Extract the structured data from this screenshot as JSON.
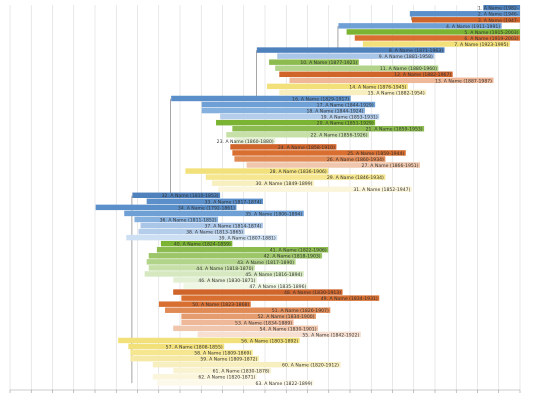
{
  "chart_data": {
    "type": "bar",
    "orientation": "horizontal-range",
    "title": "",
    "xlabel": "",
    "ylabel": "",
    "xlim": [
      1750,
      2000
    ],
    "grid": true,
    "x_ticks": [
      "",
      "",
      "",
      "",
      "",
      "",
      "",
      "",
      "",
      "",
      "",
      "",
      "",
      "",
      "",
      "",
      "",
      "",
      "",
      "",
      "",
      "",
      "",
      "",
      ""
    ],
    "bars": [
      {
        "label": "1. A Name (1982-",
        "start": 1982,
        "end": 2000,
        "color": "#4f81bd"
      },
      {
        "label": "2. A Name (1946-",
        "start": 1946,
        "end": 2000,
        "color": "#5b8fc9"
      },
      {
        "label": "3. A Name (1947-",
        "start": 1947,
        "end": 2000,
        "color": "#d0652b"
      },
      {
        "label": "4. A Name (1911-1991)",
        "start": 1911,
        "end": 1991,
        "color": "#6e9fd5"
      },
      {
        "label": "5. A Name (1915-2003)",
        "start": 1915,
        "end": 2003,
        "color": "#7bb333"
      },
      {
        "label": "6. A Name (1919-2003)",
        "start": 1919,
        "end": 2003,
        "color": "#d86f30"
      },
      {
        "label": "7. A Name (1923-1995)",
        "start": 1923,
        "end": 1995,
        "color": "#f2e07a"
      },
      {
        "label": "8. A Name (1871-1963)",
        "start": 1871,
        "end": 1963,
        "color": "#4f81bd"
      },
      {
        "label": "9. A Name (1881-1958)",
        "start": 1881,
        "end": 1958,
        "color": "#a9c5e8"
      },
      {
        "label": "10. A Name (1877-1921)",
        "start": 1877,
        "end": 1921,
        "color": "#8cbb50"
      },
      {
        "label": "11. A Name (1880-1960)",
        "start": 1880,
        "end": 1960,
        "color": "#b2d48a"
      },
      {
        "label": "12. A Name (1882-1967)",
        "start": 1882,
        "end": 1967,
        "color": "#d0652b"
      },
      {
        "label": "13. A Name (1887-1987)",
        "start": 1887,
        "end": 1987,
        "color": "#efb898"
      },
      {
        "label": "14. A Name (1876-1945)",
        "start": 1876,
        "end": 1945,
        "color": "#f2e07a"
      },
      {
        "label": "15. A Name (1882-1954)",
        "start": 1882,
        "end": 1954,
        "color": "#f8efc0"
      },
      {
        "label": "16. A Name (1829-1917)",
        "start": 1829,
        "end": 1917,
        "color": "#5b8fc9"
      },
      {
        "label": "17. A Name (1844-1929)",
        "start": 1844,
        "end": 1929,
        "color": "#6e9fd5"
      },
      {
        "label": "18. A Name (1844-1924)",
        "start": 1844,
        "end": 1924,
        "color": "#86b0de"
      },
      {
        "label": "19. A Name (1853-1931)",
        "start": 1853,
        "end": 1931,
        "color": "#b4cdeb"
      },
      {
        "label": "20. A Name (1851-1929)",
        "start": 1851,
        "end": 1929,
        "color": "#7bb333"
      },
      {
        "label": "21. A Name (1859-1953)",
        "start": 1859,
        "end": 1953,
        "color": "#8cbb50"
      },
      {
        "label": "22. A Name (1856-1926)",
        "start": 1856,
        "end": 1926,
        "color": "#c6e0a8"
      },
      {
        "label": "23. A Name (1860-1880)",
        "start": 1860,
        "end": 1880,
        "color": "#e3efd3"
      },
      {
        "label": "24. A Name (1858-1910)",
        "start": 1858,
        "end": 1910,
        "color": "#d0652b"
      },
      {
        "label": "25. A Name (1859-1944)",
        "start": 1859,
        "end": 1944,
        "color": "#d86f30"
      },
      {
        "label": "26. A Name (1860-1934)",
        "start": 1860,
        "end": 1934,
        "color": "#e08a55"
      },
      {
        "label": "27. A Name (1866-1951)",
        "start": 1866,
        "end": 1951,
        "color": "#f0c7ad"
      },
      {
        "label": "28. A Name (1836-1906)",
        "start": 1836,
        "end": 1906,
        "color": "#f2e07a"
      },
      {
        "label": "29. A Name (1846-1934)",
        "start": 1846,
        "end": 1934,
        "color": "#f5e68f"
      },
      {
        "label": "30. A Name (1849-1899)",
        "start": 1849,
        "end": 1899,
        "color": "#f8efc0"
      },
      {
        "label": "31. A Name (1852-1947)",
        "start": 1852,
        "end": 1947,
        "color": "#fbf5dc"
      },
      {
        "label": "32. A Name (1810-1853)",
        "start": 1810,
        "end": 1853,
        "color": "#4f81bd"
      },
      {
        "label": "33. A Name (1817-1874)",
        "start": 1817,
        "end": 1874,
        "color": "#5b8fc9"
      },
      {
        "label": "34. A Name (1792-1861)",
        "start": 1792,
        "end": 1861,
        "color": "#5b8fc9"
      },
      {
        "label": "35. A Name (1806-1894)",
        "start": 1806,
        "end": 1894,
        "color": "#6e9fd5"
      },
      {
        "label": "36. A Name (1811-1852)",
        "start": 1811,
        "end": 1852,
        "color": "#86b0de"
      },
      {
        "label": "37. A Name (1814-1874)",
        "start": 1814,
        "end": 1874,
        "color": "#a9c5e8"
      },
      {
        "label": "38. A Name (1813-1865)",
        "start": 1813,
        "end": 1865,
        "color": "#b4cdeb"
      },
      {
        "label": "39. A Name (1807-1881)",
        "start": 1807,
        "end": 1881,
        "color": "#cddff2"
      },
      {
        "label": "40. A Name (1824-1859)",
        "start": 1824,
        "end": 1859,
        "color": "#7bb333"
      },
      {
        "label": "41. A Name (1822-1906)",
        "start": 1822,
        "end": 1906,
        "color": "#8cbb50"
      },
      {
        "label": "42. A Name (1818-1903)",
        "start": 1818,
        "end": 1903,
        "color": "#9cc667"
      },
      {
        "label": "43. A Name (1817-1890)",
        "start": 1817,
        "end": 1890,
        "color": "#b2d48a"
      },
      {
        "label": "44. A Name (1818-1870)",
        "start": 1818,
        "end": 1870,
        "color": "#c6e0a8"
      },
      {
        "label": "45. A Name (1816-1894)",
        "start": 1816,
        "end": 1894,
        "color": "#d5e8bf"
      },
      {
        "label": "46. A Name (1830-1871)",
        "start": 1830,
        "end": 1871,
        "color": "#e3efd3"
      },
      {
        "label": "47. A Name (1835-1896)",
        "start": 1835,
        "end": 1896,
        "color": "#eef6e4"
      },
      {
        "label": "48. A Name (1830-1913)",
        "start": 1830,
        "end": 1913,
        "color": "#d0652b"
      },
      {
        "label": "49. A Name (1834-1931)",
        "start": 1834,
        "end": 1931,
        "color": "#d86f30"
      },
      {
        "label": "50. A Name (1823-1868)",
        "start": 1823,
        "end": 1868,
        "color": "#d86f30"
      },
      {
        "label": "51. A Name (1826-1907)",
        "start": 1826,
        "end": 1907,
        "color": "#e08a55"
      },
      {
        "label": "52. A Name (1834-1900)",
        "start": 1834,
        "end": 1900,
        "color": "#e59c6e"
      },
      {
        "label": "53. A Name (1834-1889)",
        "start": 1834,
        "end": 1889,
        "color": "#efb898"
      },
      {
        "label": "54. A Name (1830-1901)",
        "start": 1830,
        "end": 1901,
        "color": "#f0c7ad"
      },
      {
        "label": "55. A Name (1842-1922)",
        "start": 1842,
        "end": 1922,
        "color": "#f7e0d1"
      },
      {
        "label": "56. A Name (1803-1892)",
        "start": 1803,
        "end": 1892,
        "color": "#f2e07a"
      },
      {
        "label": "57. A Name (1808-1855)",
        "start": 1808,
        "end": 1855,
        "color": "#f2e07a"
      },
      {
        "label": "58. A Name (1809-1869)",
        "start": 1809,
        "end": 1869,
        "color": "#f5e68f"
      },
      {
        "label": "59. A Name (1809-1872)",
        "start": 1809,
        "end": 1872,
        "color": "#f6e9a6"
      },
      {
        "label": "60. A Name (1820-1912)",
        "start": 1820,
        "end": 1912,
        "color": "#f8efc0"
      },
      {
        "label": "61. A Name (1830-1878)",
        "start": 1830,
        "end": 1878,
        "color": "#faf3d2"
      },
      {
        "label": "62. A Name (1820-1871)",
        "start": 1820,
        "end": 1871,
        "color": "#fbf5dc"
      },
      {
        "label": "63. A Name (1822-1899)",
        "start": 1822,
        "end": 1899,
        "color": "#fdf9ea"
      }
    ],
    "connectors": [
      {
        "parent": 2,
        "child": 3
      },
      {
        "parent": 8,
        "child": 4
      },
      {
        "parent": 16,
        "child": 8
      },
      {
        "parent": 32,
        "child": 16
      },
      {
        "parent": 63,
        "child": 32
      }
    ]
  }
}
